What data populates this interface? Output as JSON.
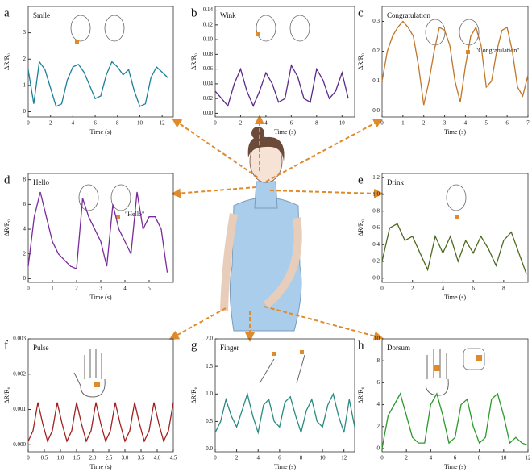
{
  "chart_data": [
    {
      "type": "line",
      "panel_label": "a",
      "title": "Smile",
      "xlabel": "Time (s)",
      "ylabel": "ΔR/R₀",
      "color": "#1b7f9a",
      "x": [
        0,
        0.5,
        1,
        1.5,
        2,
        2.5,
        3,
        3.5,
        4,
        4.5,
        5,
        5.5,
        6,
        6.5,
        7,
        7.5,
        8,
        8.5,
        9,
        9.5,
        10,
        10.5,
        11,
        11.5,
        12,
        12.5
      ],
      "values": [
        1.6,
        0.3,
        1.9,
        1.6,
        0.9,
        0.2,
        0.3,
        1.2,
        1.7,
        1.8,
        1.5,
        1.0,
        0.5,
        0.6,
        1.4,
        1.9,
        1.7,
        1.4,
        1.6,
        0.8,
        0.2,
        0.3,
        1.3,
        1.7,
        1.5,
        1.3
      ],
      "xlim": [
        0,
        13
      ],
      "xticks": [
        0,
        2,
        4,
        6,
        8,
        10,
        12
      ],
      "ylim": [
        -0.2,
        4
      ],
      "yticks": [
        0,
        1,
        2,
        3
      ]
    },
    {
      "type": "line",
      "panel_label": "b",
      "title": "Wink",
      "xlabel": "Time (s)",
      "ylabel": "ΔR/R₀",
      "color": "#5a2a8a",
      "x": [
        0,
        0.5,
        1,
        1.5,
        2,
        2.5,
        3,
        3.5,
        4,
        4.5,
        5,
        5.5,
        6,
        6.5,
        7,
        7.5,
        8,
        8.5,
        9,
        9.5,
        10,
        10.5
      ],
      "values": [
        0.03,
        0.02,
        0.01,
        0.04,
        0.06,
        0.03,
        0.01,
        0.03,
        0.055,
        0.04,
        0.015,
        0.02,
        0.065,
        0.05,
        0.02,
        0.015,
        0.06,
        0.045,
        0.02,
        0.03,
        0.055,
        0.02
      ],
      "xlim": [
        0,
        11
      ],
      "xticks": [
        0,
        2,
        4,
        6,
        8,
        10
      ],
      "ylim": [
        -0.005,
        0.145
      ],
      "yticks": [
        {
          "value": 0,
          "label": "0.00"
        },
        {
          "value": 0.02,
          "label": "0.02"
        },
        {
          "value": 0.04,
          "label": "0.04"
        },
        {
          "value": 0.06,
          "label": "0.06"
        },
        {
          "value": 0.08,
          "label": "0.08"
        },
        {
          "value": 0.1,
          "label": "0.10"
        },
        {
          "value": 0.12,
          "label": "0.12"
        },
        {
          "value": 0.14,
          "label": "0.14"
        }
      ]
    },
    {
      "type": "line",
      "panel_label": "c",
      "title": "Congratulation",
      "annotation": "\"Congratulation\"",
      "xlabel": "Time (s)",
      "ylabel": "ΔR/R₀",
      "color": "#c0762a",
      "x": [
        0,
        0.25,
        0.5,
        0.75,
        1,
        1.25,
        1.5,
        1.75,
        2,
        2.25,
        2.5,
        2.75,
        3,
        3.25,
        3.5,
        3.75,
        4,
        4.25,
        4.5,
        4.75,
        5,
        5.25,
        5.5,
        5.75,
        6,
        6.25,
        6.5,
        6.75,
        7
      ],
      "values": [
        0.1,
        0.2,
        0.25,
        0.28,
        0.3,
        0.28,
        0.25,
        0.15,
        0.02,
        0.1,
        0.2,
        0.28,
        0.27,
        0.22,
        0.1,
        0.03,
        0.15,
        0.25,
        0.28,
        0.22,
        0.08,
        0.1,
        0.2,
        0.27,
        0.28,
        0.2,
        0.08,
        0.05,
        0.12
      ],
      "xlim": [
        0,
        7
      ],
      "xticks": [
        0,
        1,
        2,
        3,
        4,
        5,
        6,
        7
      ],
      "ylim": [
        -0.02,
        0.35
      ],
      "yticks": [
        {
          "value": 0,
          "label": "0.0"
        },
        0.1,
        0.2,
        0.3
      ]
    },
    {
      "type": "line",
      "panel_label": "d",
      "title": "Hello",
      "annotation": "\"Hello\"",
      "xlabel": "Time (s)",
      "ylabel": "ΔR/R₀",
      "color": "#7a2a9a",
      "x": [
        0,
        0.25,
        0.5,
        0.75,
        1,
        1.25,
        1.5,
        1.75,
        2,
        2.25,
        2.5,
        2.75,
        3,
        3.25,
        3.5,
        3.75,
        4,
        4.25,
        4.5,
        4.75,
        5,
        5.25,
        5.5,
        5.75
      ],
      "values": [
        1,
        5,
        7,
        5,
        3,
        2,
        1.5,
        1,
        0.8,
        6.5,
        5,
        4,
        3,
        1,
        6,
        4,
        3,
        2,
        7,
        4,
        5,
        5,
        4,
        0.5
      ],
      "xlim": [
        0,
        6
      ],
      "xticks": [
        0,
        1,
        2,
        3,
        4,
        5
      ],
      "ylim": [
        -0.3,
        8.5
      ],
      "yticks": [
        0,
        2,
        4,
        6,
        8
      ]
    },
    {
      "type": "line",
      "panel_label": "e",
      "title": "Drink",
      "xlabel": "Time (s)",
      "ylabel": "ΔR/R₀",
      "color": "#4b6b1f",
      "x": [
        0,
        0.5,
        1,
        1.5,
        2,
        2.5,
        3,
        3.5,
        4,
        4.5,
        5,
        5.5,
        6,
        6.5,
        7,
        7.5,
        8,
        8.5,
        9,
        9.5
      ],
      "values": [
        0.2,
        0.6,
        0.65,
        0.45,
        0.5,
        0.3,
        0.1,
        0.5,
        0.3,
        0.5,
        0.2,
        0.45,
        0.3,
        0.5,
        0.35,
        0.15,
        0.45,
        0.55,
        0.3,
        0.05
      ],
      "xlim": [
        0,
        9.6
      ],
      "xticks": [
        0,
        2,
        4,
        6,
        8
      ],
      "ylim": [
        -0.05,
        1.25
      ],
      "yticks": [
        {
          "value": 0,
          "label": "0.0"
        },
        0.2,
        0.4,
        0.6,
        0.8,
        {
          "value": 1,
          "label": "1.0"
        },
        1.2
      ]
    },
    {
      "type": "line",
      "panel_label": "f",
      "title": "Pulse",
      "xlabel": "Time (s)",
      "ylabel": "ΔR/R₀",
      "color": "#a02020",
      "x": [
        0,
        0.15,
        0.3,
        0.45,
        0.6,
        0.75,
        0.9,
        1.05,
        1.2,
        1.35,
        1.5,
        1.65,
        1.8,
        1.95,
        2.1,
        2.25,
        2.4,
        2.55,
        2.7,
        2.85,
        3,
        3.15,
        3.3,
        3.45,
        3.6,
        3.75,
        3.9,
        4.05,
        4.2,
        4.35,
        4.5
      ],
      "values": [
        0.0001,
        0.0004,
        0.0012,
        0.0006,
        0.0001,
        0.0004,
        0.0012,
        0.0006,
        0.0001,
        0.0004,
        0.0012,
        0.0006,
        0.0001,
        0.0004,
        0.0012,
        0.0006,
        0.0001,
        0.0004,
        0.0012,
        0.0006,
        0.0001,
        0.0004,
        0.0012,
        0.0006,
        0.0001,
        0.0004,
        0.0012,
        0.0006,
        0.0001,
        0.0004,
        0.0012
      ],
      "xlim": [
        0,
        4.5
      ],
      "xticks": [
        0,
        0.5,
        {
          "value": 1,
          "label": "1.0"
        },
        1.5,
        {
          "value": 2,
          "label": "2.0"
        },
        2.5,
        {
          "value": 3,
          "label": "3.0"
        },
        3.5,
        {
          "value": 4,
          "label": "4.0"
        },
        4.5
      ],
      "ylim": [
        -0.0002,
        0.003
      ],
      "yticks": [
        {
          "value": 0,
          "label": "0.000"
        },
        0.001,
        0.002,
        0.003
      ]
    },
    {
      "type": "line",
      "panel_label": "g",
      "title": "Finger",
      "xlabel": "Time (s)",
      "ylabel": "ΔR/R₀",
      "color": "#2a8a80",
      "x": [
        0,
        0.5,
        1,
        1.5,
        2,
        2.5,
        3,
        3.5,
        4,
        4.5,
        5,
        5.5,
        6,
        6.5,
        7,
        7.5,
        8,
        8.5,
        9,
        9.5,
        10,
        10.5,
        11,
        11.5,
        12,
        12.5,
        13
      ],
      "values": [
        0.3,
        0.5,
        0.9,
        0.6,
        0.4,
        0.7,
        1.0,
        0.6,
        0.3,
        0.8,
        0.9,
        0.5,
        0.4,
        0.85,
        0.95,
        0.6,
        0.3,
        0.7,
        0.9,
        0.5,
        0.4,
        0.8,
        1.0,
        0.6,
        0.3,
        0.9,
        0.4
      ],
      "xlim": [
        0,
        13
      ],
      "xticks": [
        0,
        2,
        4,
        6,
        8,
        10,
        12
      ],
      "ylim": [
        -0.05,
        2.0
      ],
      "yticks": [
        {
          "value": 0,
          "label": "0.0"
        },
        0.5,
        {
          "value": 1,
          "label": "1.0"
        },
        1.5,
        {
          "value": 2,
          "label": "2.0"
        }
      ]
    },
    {
      "type": "line",
      "panel_label": "h",
      "title": "Dorsum",
      "xlabel": "Time (s)",
      "ylabel": "ΔR/R₀",
      "color": "#2a9a2a",
      "x": [
        0,
        0.5,
        1,
        1.5,
        2,
        2.5,
        3,
        3.5,
        4,
        4.5,
        5,
        5.5,
        6,
        6.5,
        7,
        7.5,
        8,
        8.5,
        9,
        9.5,
        10,
        10.5,
        11,
        11.5,
        12
      ],
      "values": [
        0,
        3,
        4,
        5,
        3,
        1,
        0.5,
        0.5,
        4,
        5,
        3,
        0.5,
        1,
        4,
        4.5,
        2,
        0.5,
        1,
        4.5,
        5,
        3,
        0.5,
        1,
        0.5,
        0.3
      ],
      "xlim": [
        0,
        12
      ],
      "xticks": [
        0,
        2,
        4,
        6,
        8,
        10,
        12
      ],
      "ylim": [
        -0.3,
        10
      ],
      "yticks": [
        0,
        2,
        4,
        6,
        8,
        10
      ]
    }
  ]
}
